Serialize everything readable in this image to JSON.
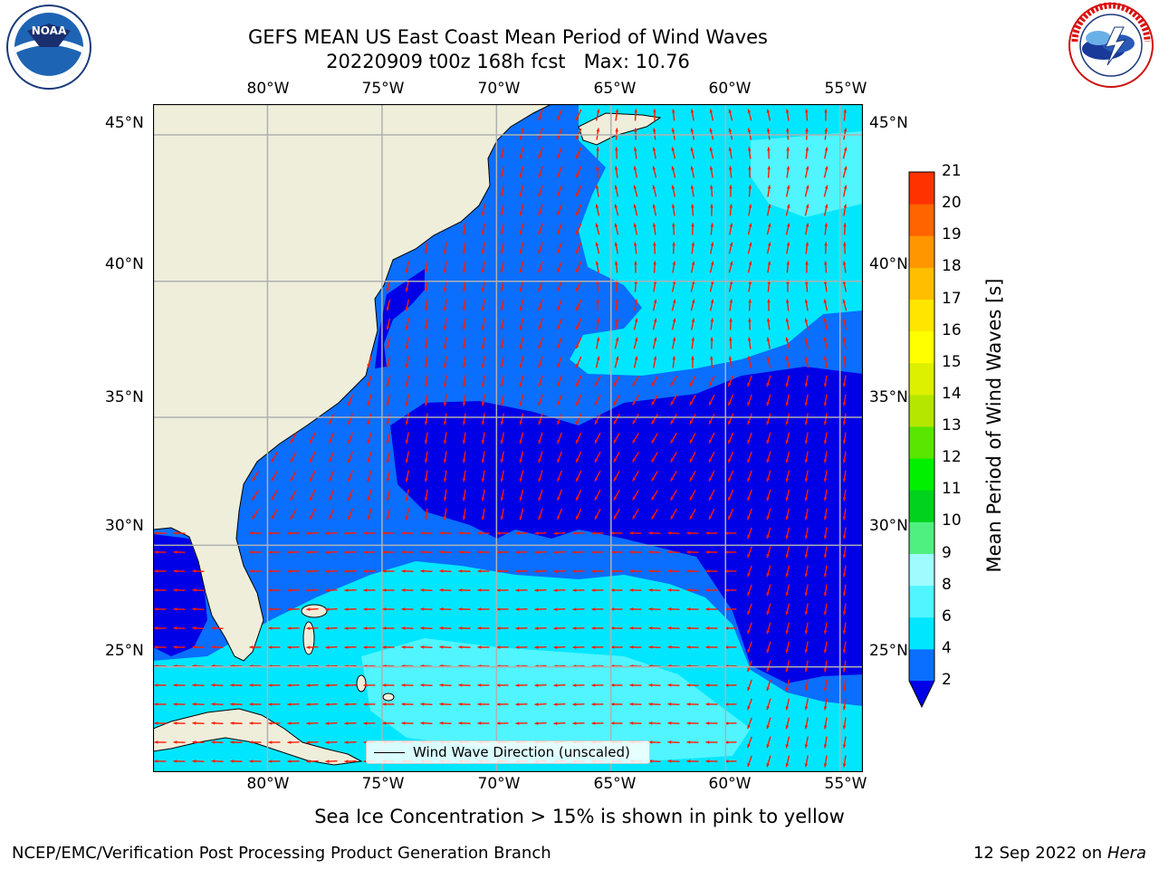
{
  "header": {
    "title_line1": "GEFS MEAN US East Coast Mean Period of Wind Waves",
    "title_line2": "20220909 t00z 168h fcst   Max: 10.76"
  },
  "logos": {
    "left": {
      "name": "NOAA",
      "text": "NOAA"
    },
    "right": {
      "name": "National Weather Service",
      "text": "NATIONAL WEATHER SERVICE"
    }
  },
  "map": {
    "lon_range": [
      -85,
      -54
    ],
    "lat_range": [
      20.5,
      46
    ],
    "lon_ticks": [
      "80°W",
      "75°W",
      "70°W",
      "65°W",
      "60°W",
      "55°W"
    ],
    "lat_ticks": [
      "45°N",
      "40°N",
      "35°N",
      "30°N",
      "25°N"
    ],
    "colors": {
      "land": "#efeedb",
      "grid": "#b0b0b0",
      "arrow": "#ff1a00",
      "band_2_4": "#0a6eff",
      "band_below_2": "#0000e6",
      "band_4_6": "#00e6ff",
      "band_6_8": "#50f5ff"
    },
    "legend_label": "Wind Wave Direction (unscaled)"
  },
  "colorbar": {
    "label": "Mean Period of Wind Waves [s]",
    "ticks": [
      "2",
      "4",
      "6",
      "8",
      "9",
      "10",
      "11",
      "12",
      "13",
      "14",
      "15",
      "16",
      "17",
      "18",
      "19",
      "20",
      "21"
    ],
    "colors": [
      "#0a6eff",
      "#00e6ff",
      "#50f5ff",
      "#a0fbff",
      "#50f080",
      "#00d21e",
      "#00f000",
      "#5ae600",
      "#b4e600",
      "#dcf000",
      "#ffff00",
      "#ffe600",
      "#ffbe00",
      "#ff9600",
      "#ff6400",
      "#ff3200",
      "#ff0000"
    ],
    "extend_color": "#0000e6"
  },
  "note": "Sea Ice Concentration > 15% is shown in pink to yellow",
  "footer": {
    "left": "NCEP/EMC/Verification Post Processing Product Generation Branch",
    "date": "12 Sep 2022 on",
    "machine": "Hera"
  }
}
